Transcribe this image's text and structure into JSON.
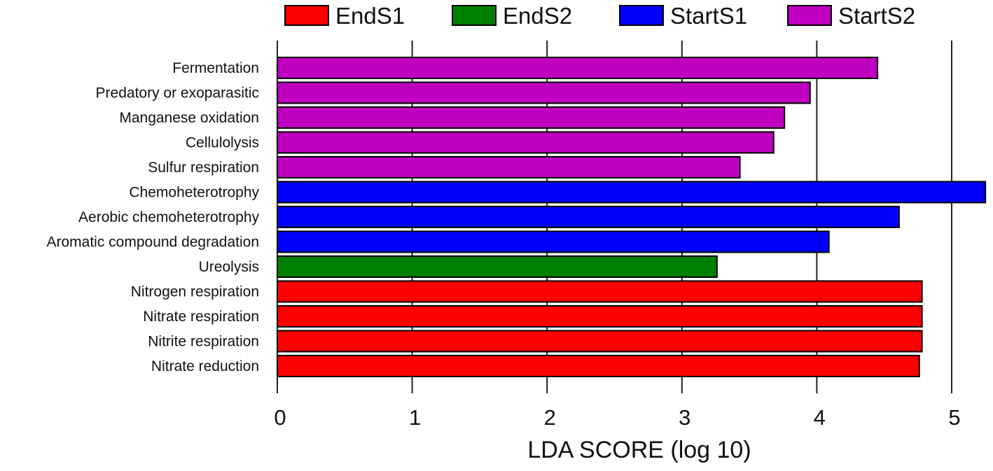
{
  "chart_data": {
    "type": "bar",
    "orientation": "horizontal",
    "title": "",
    "xlabel": "LDA SCORE (log 10)",
    "ylabel": "",
    "xlim": [
      0,
      5.25
    ],
    "xticks": [
      0,
      1,
      2,
      3,
      4,
      5
    ],
    "grid": "vertical lines at x ticks",
    "legend_position": "top",
    "legend": [
      {
        "name": "EndS1",
        "color": "#ff0000"
      },
      {
        "name": "EndS2",
        "color": "#008000"
      },
      {
        "name": "StartS1",
        "color": "#0000ff"
      },
      {
        "name": "StartS2",
        "color": "#c000c0"
      }
    ],
    "categories": [
      "Fermentation",
      "Predatory or exoparasitic",
      "Manganese oxidation",
      "Cellulolysis",
      "Sulfur respiration",
      "Chemoheterotrophy",
      "Aerobic chemoheterotrophy",
      "Aromatic compound degradation",
      "Ureolysis",
      "Nitrogen respiration",
      "Nitrate respiration",
      "Nitrite respiration",
      "Nitrate reduction"
    ],
    "values": [
      4.45,
      3.95,
      3.76,
      3.68,
      3.43,
      5.25,
      4.61,
      4.09,
      3.26,
      4.78,
      4.78,
      4.78,
      4.76
    ],
    "groups": [
      "StartS2",
      "StartS2",
      "StartS2",
      "StartS2",
      "StartS2",
      "StartS1",
      "StartS1",
      "StartS1",
      "EndS2",
      "EndS1",
      "EndS1",
      "EndS1",
      "EndS1"
    ]
  }
}
